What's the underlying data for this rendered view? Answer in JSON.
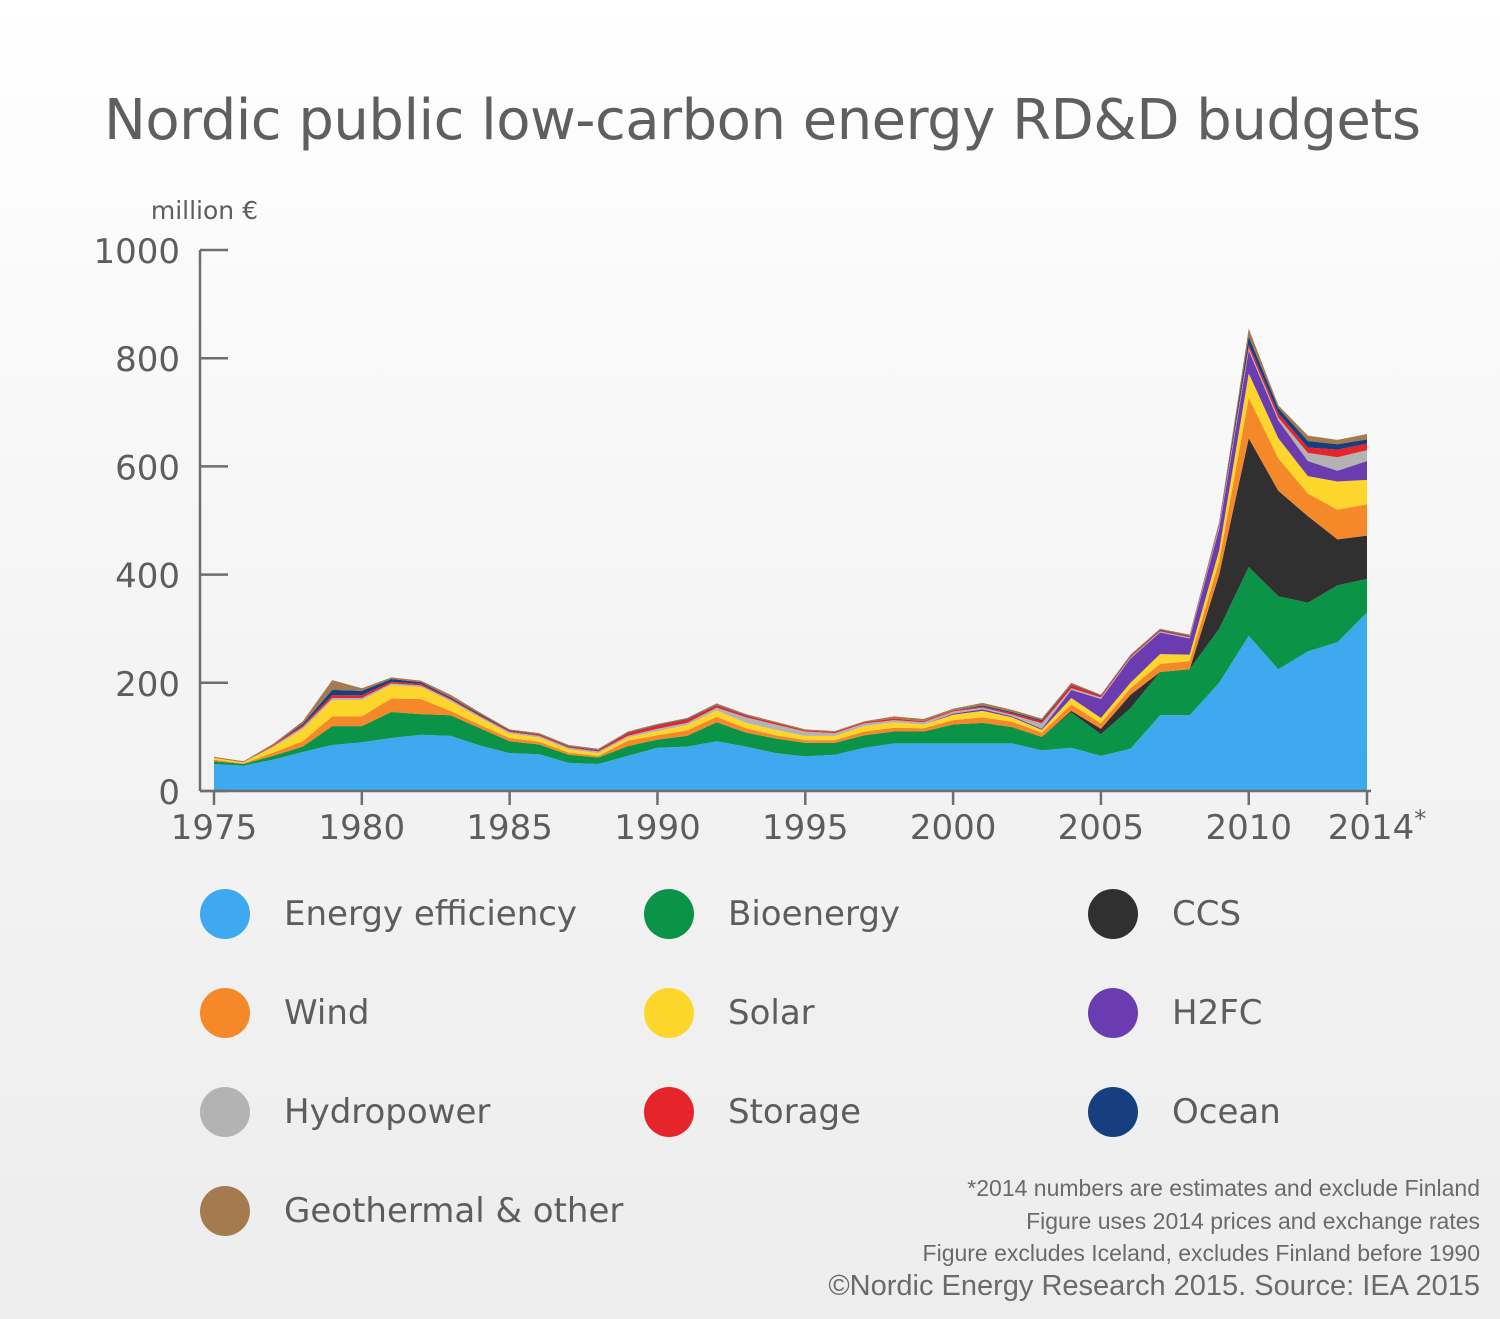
{
  "title": "Nordic public low-carbon energy RD&D budgets",
  "notes": [
    "*2014 numbers are estimates and exclude Finland",
    "Figure uses 2014 prices and exchange rates",
    "Figure excludes Iceland, excludes Finland before 1990"
  ],
  "source": "©Nordic Energy Research 2015. Source: IEA 2015",
  "chart_data": {
    "type": "area",
    "title": "Nordic public low-carbon energy RD&D budgets",
    "ylabel": "million €",
    "xlabel": "",
    "ylim": [
      0,
      1000
    ],
    "yticks": [
      0,
      200,
      400,
      600,
      800,
      1000
    ],
    "xticks": [
      "1975",
      "1980",
      "1985",
      "1990",
      "1995",
      "2000",
      "2005",
      "2010",
      "2014*"
    ],
    "legend_position": "bottom",
    "x": [
      1975,
      1976,
      1977,
      1978,
      1979,
      1980,
      1981,
      1982,
      1983,
      1984,
      1985,
      1986,
      1987,
      1988,
      1989,
      1990,
      1991,
      1992,
      1993,
      1994,
      1995,
      1996,
      1997,
      1998,
      1999,
      2000,
      2001,
      2002,
      2003,
      2004,
      2005,
      2006,
      2007,
      2008,
      2009,
      2010,
      2011,
      2012,
      2013,
      2014
    ],
    "series": [
      {
        "name": "Energy efficiency",
        "color": "#3fa9f0",
        "values": [
          50,
          47,
          58,
          72,
          85,
          90,
          98,
          104,
          102,
          84,
          70,
          68,
          52,
          50,
          65,
          80,
          82,
          92,
          82,
          70,
          64,
          67,
          80,
          88,
          88,
          88,
          88,
          88,
          75,
          80,
          65,
          78,
          140,
          140,
          200,
          287,
          225,
          258,
          275,
          330
        ]
      },
      {
        "name": "Bioenergy",
        "color": "#0b9447",
        "values": [
          5,
          3,
          7,
          10,
          35,
          30,
          48,
          38,
          38,
          32,
          22,
          18,
          15,
          12,
          18,
          15,
          20,
          35,
          26,
          27,
          25,
          22,
          23,
          22,
          22,
          35,
          38,
          30,
          25,
          65,
          40,
          75,
          80,
          85,
          100,
          127,
          135,
          90,
          105,
          62
        ]
      },
      {
        "name": "CCS",
        "color": "#303030",
        "values": [
          0,
          0,
          0,
          0,
          0,
          0,
          0,
          0,
          0,
          0,
          0,
          0,
          0,
          0,
          0,
          0,
          0,
          0,
          0,
          0,
          0,
          0,
          0,
          0,
          0,
          0,
          0,
          0,
          0,
          3,
          10,
          25,
          0,
          0,
          100,
          238,
          195,
          160,
          85,
          80
        ]
      },
      {
        "name": "Wind",
        "color": "#f5892a",
        "values": [
          3,
          1,
          6,
          10,
          18,
          18,
          25,
          28,
          8,
          6,
          6,
          5,
          4,
          3,
          10,
          8,
          10,
          10,
          8,
          6,
          5,
          5,
          7,
          7,
          6,
          8,
          10,
          10,
          8,
          12,
          10,
          12,
          15,
          15,
          25,
          75,
          60,
          42,
          55,
          58
        ]
      },
      {
        "name": "Solar",
        "color": "#fdd62c",
        "values": [
          3,
          2,
          10,
          22,
          30,
          30,
          25,
          22,
          18,
          13,
          8,
          8,
          6,
          5,
          6,
          8,
          10,
          12,
          10,
          10,
          8,
          8,
          10,
          10,
          7,
          10,
          12,
          8,
          5,
          12,
          10,
          10,
          18,
          12,
          20,
          45,
          37,
          32,
          52,
          45
        ]
      },
      {
        "name": "H2FC",
        "color": "#6a3cb0",
        "values": [
          0,
          0,
          0,
          0,
          0,
          0,
          0,
          0,
          0,
          0,
          0,
          0,
          0,
          0,
          0,
          0,
          0,
          0,
          0,
          0,
          0,
          0,
          0,
          0,
          0,
          2,
          3,
          2,
          2,
          15,
          35,
          45,
          40,
          30,
          40,
          42,
          33,
          28,
          20,
          35
        ]
      },
      {
        "name": "Hydropower",
        "color": "#b3b3b3",
        "values": [
          0,
          0,
          2,
          4,
          4,
          4,
          3,
          3,
          3,
          3,
          3,
          3,
          3,
          3,
          3,
          4,
          4,
          5,
          10,
          10,
          8,
          5,
          5,
          4,
          4,
          4,
          3,
          3,
          10,
          3,
          3,
          2,
          2,
          2,
          5,
          5,
          5,
          15,
          25,
          20
        ]
      },
      {
        "name": "Storage",
        "color": "#e6252b",
        "values": [
          0,
          0,
          2,
          3,
          5,
          5,
          3,
          3,
          2,
          2,
          2,
          2,
          2,
          2,
          5,
          6,
          6,
          4,
          3,
          3,
          2,
          2,
          2,
          3,
          2,
          2,
          2,
          3,
          4,
          6,
          3,
          2,
          2,
          2,
          3,
          6,
          8,
          10,
          14,
          12
        ]
      },
      {
        "name": "Ocean",
        "color": "#173f80",
        "values": [
          0,
          0,
          0,
          3,
          10,
          8,
          5,
          3,
          2,
          2,
          1,
          1,
          1,
          1,
          1,
          1,
          1,
          1,
          1,
          0,
          0,
          0,
          0,
          0,
          0,
          0,
          2,
          2,
          2,
          1,
          1,
          1,
          1,
          1,
          2,
          15,
          10,
          12,
          10,
          8
        ]
      },
      {
        "name": "Geothermal & other",
        "color": "#a47a4e",
        "values": [
          2,
          2,
          2,
          5,
          18,
          5,
          3,
          3,
          5,
          3,
          2,
          2,
          2,
          2,
          2,
          2,
          2,
          3,
          2,
          2,
          2,
          2,
          2,
          4,
          4,
          3,
          5,
          4,
          3,
          3,
          1,
          2,
          2,
          2,
          3,
          15,
          5,
          10,
          8,
          10
        ]
      }
    ]
  }
}
